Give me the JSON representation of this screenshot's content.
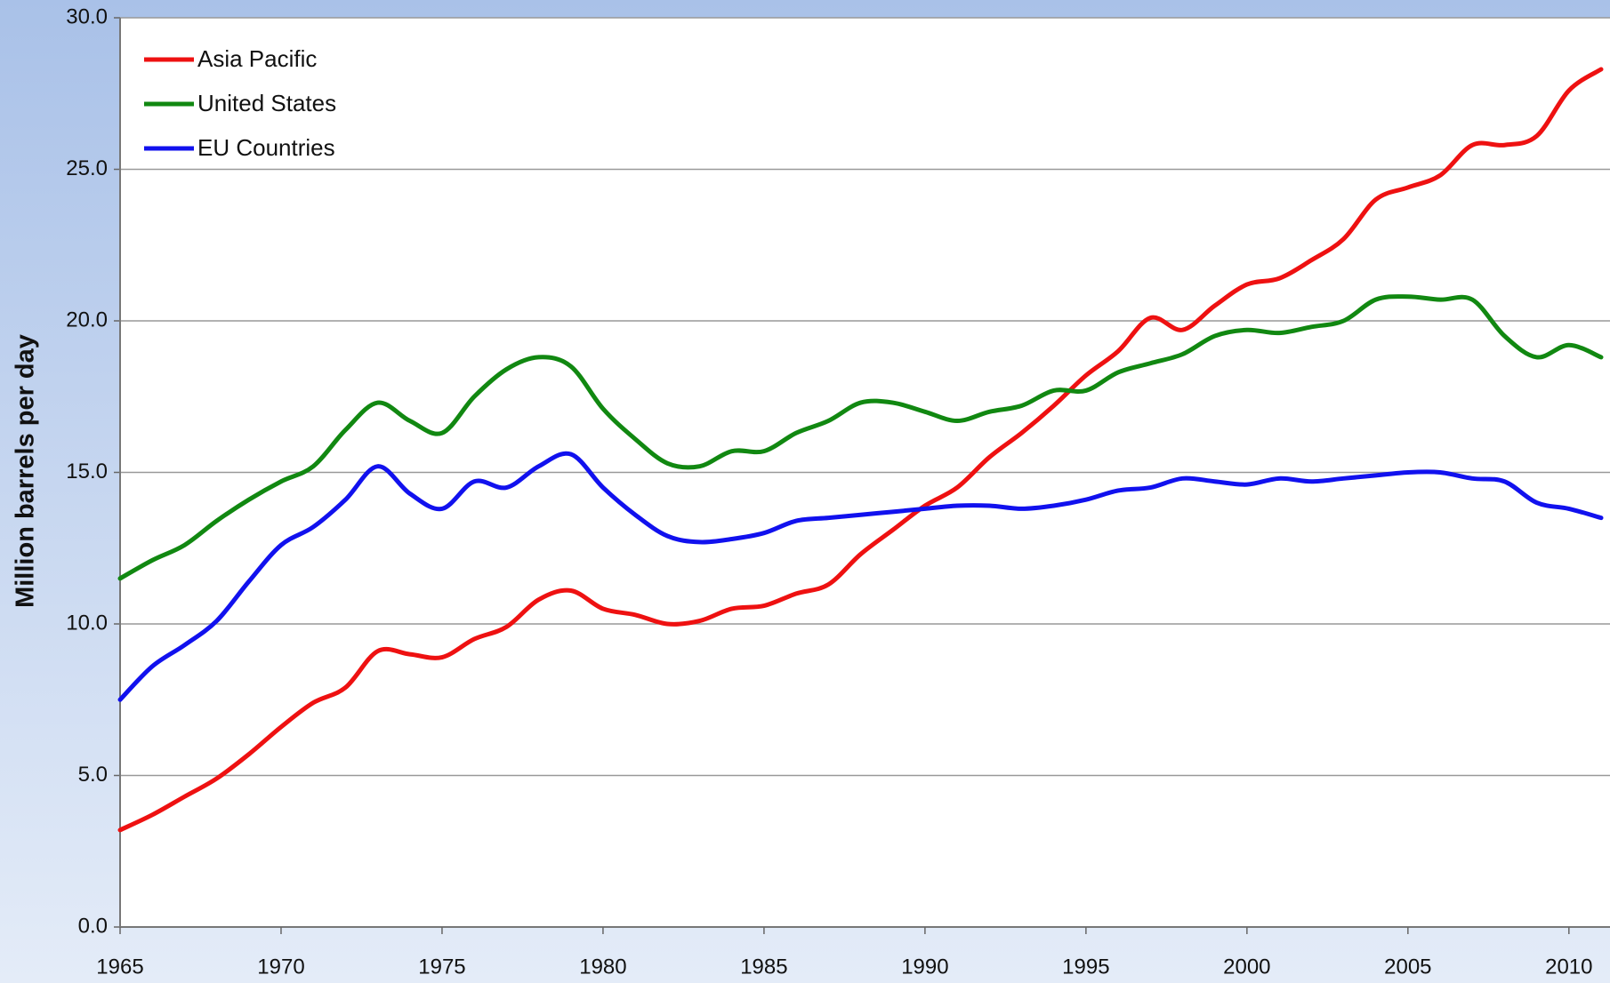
{
  "chart_data": {
    "type": "line",
    "ylabel": "Million barrels per day",
    "x": [
      1965,
      1966,
      1967,
      1968,
      1969,
      1970,
      1971,
      1972,
      1973,
      1974,
      1975,
      1976,
      1977,
      1978,
      1979,
      1980,
      1981,
      1982,
      1983,
      1984,
      1985,
      1986,
      1987,
      1988,
      1989,
      1990,
      1991,
      1992,
      1993,
      1994,
      1995,
      1996,
      1997,
      1998,
      1999,
      2000,
      2001,
      2002,
      2003,
      2004,
      2005,
      2006,
      2007,
      2008,
      2009,
      2010,
      2011
    ],
    "series": [
      {
        "name": "Asia Pacific",
        "color": "#ee1111",
        "values": [
          3.2,
          3.7,
          4.3,
          4.9,
          5.7,
          6.6,
          7.4,
          7.9,
          9.1,
          9.0,
          8.9,
          9.5,
          9.9,
          10.8,
          11.1,
          10.5,
          10.3,
          10.0,
          10.1,
          10.5,
          10.6,
          11.0,
          11.3,
          12.3,
          13.1,
          13.9,
          14.5,
          15.5,
          16.3,
          17.2,
          18.2,
          19.0,
          20.1,
          19.7,
          20.5,
          21.2,
          21.4,
          22.0,
          22.7,
          24.0,
          24.4,
          24.8,
          25.8,
          25.8,
          26.1,
          27.6,
          28.3
        ]
      },
      {
        "name": "United States",
        "color": "#118811",
        "values": [
          11.5,
          12.1,
          12.6,
          13.4,
          14.1,
          14.7,
          15.2,
          16.4,
          17.3,
          16.7,
          16.3,
          17.5,
          18.4,
          18.8,
          18.5,
          17.1,
          16.1,
          15.3,
          15.2,
          15.7,
          15.7,
          16.3,
          16.7,
          17.3,
          17.3,
          17.0,
          16.7,
          17.0,
          17.2,
          17.7,
          17.7,
          18.3,
          18.6,
          18.9,
          19.5,
          19.7,
          19.6,
          19.8,
          20.0,
          20.7,
          20.8,
          20.7,
          20.7,
          19.5,
          18.8,
          19.2,
          18.8
        ]
      },
      {
        "name": "EU Countries",
        "color": "#1111ee",
        "values": [
          7.5,
          8.6,
          9.3,
          10.1,
          11.4,
          12.6,
          13.2,
          14.1,
          15.2,
          14.3,
          13.8,
          14.7,
          14.5,
          15.2,
          15.6,
          14.5,
          13.6,
          12.9,
          12.7,
          12.8,
          13.0,
          13.4,
          13.5,
          13.6,
          13.7,
          13.8,
          13.9,
          13.9,
          13.8,
          13.9,
          14.1,
          14.4,
          14.5,
          14.8,
          14.7,
          14.6,
          14.8,
          14.7,
          14.8,
          14.9,
          15.0,
          15.0,
          14.8,
          14.7,
          14.0,
          13.8,
          13.5
        ]
      }
    ],
    "xlim": [
      1965,
      2011
    ],
    "xticks": [
      1965,
      1970,
      1975,
      1980,
      1985,
      1990,
      1995,
      2000,
      2005,
      2010
    ],
    "ylim": [
      0,
      30
    ],
    "yticks": [
      {
        "value": 0,
        "label": "0.0"
      },
      {
        "value": 5,
        "label": "5.0"
      },
      {
        "value": 10,
        "label": "10.0"
      },
      {
        "value": 15,
        "label": "15.0"
      },
      {
        "value": 20,
        "label": "20.0"
      },
      {
        "value": 25,
        "label": "25.0"
      },
      {
        "value": 30,
        "label": "30.0"
      }
    ],
    "grid": true,
    "legend": "top-left"
  }
}
